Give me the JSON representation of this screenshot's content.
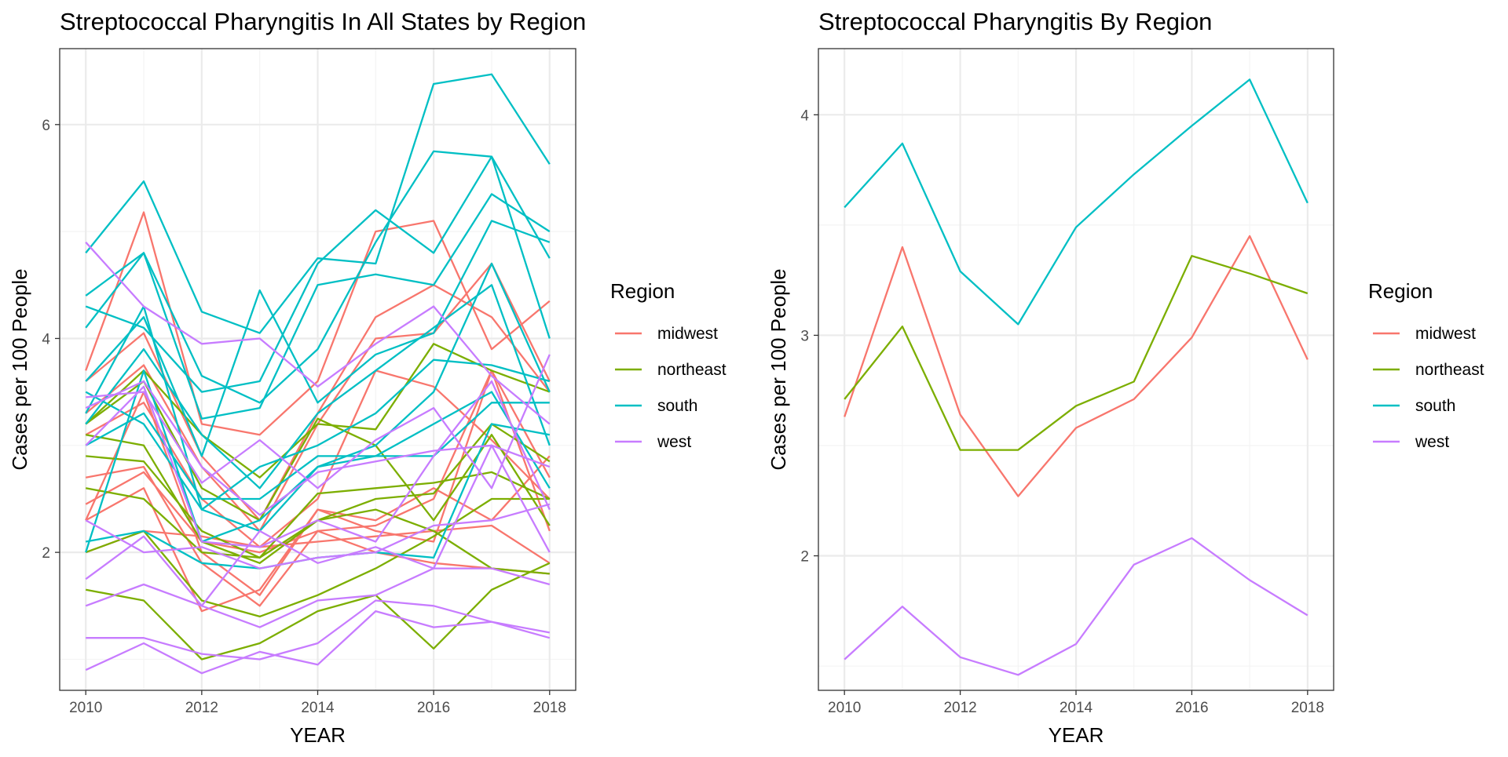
{
  "colors": {
    "midwest": "#F8766D",
    "northeast": "#7CAE00",
    "south": "#00BFC4",
    "west": "#C77CFF",
    "grid_major": "#EBEBEB",
    "grid_minor": "#F4F4F4",
    "panel_border": "#333333",
    "axis_text": "#4D4D4D"
  },
  "legend": {
    "title": "Region",
    "entries": [
      "midwest",
      "northeast",
      "south",
      "west"
    ]
  },
  "chart_data": [
    {
      "type": "line",
      "title": "Streptococcal Pharyngitis In All States by Region",
      "xlabel": "YEAR",
      "ylabel": "Cases per 100 People",
      "x": [
        2010,
        2011,
        2012,
        2013,
        2014,
        2015,
        2016,
        2017,
        2018
      ],
      "x_ticks": [
        "2010",
        "2012",
        "2014",
        "2016",
        "2018"
      ],
      "y_ticks": [
        "2",
        "4",
        "6"
      ],
      "xlim": [
        2009.55,
        2018.45
      ],
      "ylim": [
        0.71,
        6.71
      ],
      "grid": true,
      "legend_position": "right",
      "series": [
        {
          "region": "midwest",
          "values": [
            3.7,
            5.18,
            3.2,
            3.1,
            3.6,
            5.0,
            5.1,
            3.9,
            4.35
          ]
        },
        {
          "region": "midwest",
          "values": [
            3.6,
            4.05,
            2.9,
            2.3,
            3.3,
            4.2,
            4.5,
            4.2,
            3.5
          ]
        },
        {
          "region": "midwest",
          "values": [
            3.3,
            3.75,
            2.8,
            2.2,
            3.2,
            4.0,
            4.05,
            4.7,
            3.6
          ]
        },
        {
          "region": "midwest",
          "values": [
            2.3,
            3.5,
            2.0,
            1.6,
            2.4,
            2.3,
            2.6,
            2.3,
            2.9
          ]
        },
        {
          "region": "midwest",
          "values": [
            2.7,
            2.8,
            1.9,
            1.5,
            2.2,
            2.25,
            2.5,
            3.7,
            2.7
          ]
        },
        {
          "region": "midwest",
          "values": [
            2.3,
            2.6,
            1.45,
            1.65,
            2.4,
            2.2,
            2.1,
            3.7,
            2.2
          ]
        },
        {
          "region": "midwest",
          "values": [
            2.45,
            2.75,
            2.1,
            2.0,
            2.2,
            2.0,
            1.9,
            1.85,
            1.8
          ]
        },
        {
          "region": "midwest",
          "values": [
            2.0,
            2.2,
            2.15,
            2.05,
            2.1,
            2.15,
            2.2,
            2.25,
            1.9
          ]
        },
        {
          "region": "midwest",
          "values": [
            3.1,
            3.4,
            2.5,
            2.05,
            2.5,
            3.7,
            3.55,
            3.05,
            2.5
          ]
        },
        {
          "region": "northeast",
          "values": [
            3.2,
            3.7,
            3.1,
            2.7,
            3.2,
            3.15,
            3.95,
            3.7,
            3.5
          ]
        },
        {
          "region": "northeast",
          "values": [
            2.9,
            2.85,
            2.2,
            1.95,
            2.55,
            2.6,
            2.65,
            2.75,
            2.5
          ]
        },
        {
          "region": "northeast",
          "values": [
            2.6,
            2.5,
            2.0,
            1.95,
            2.3,
            2.5,
            2.55,
            3.2,
            2.85
          ]
        },
        {
          "region": "northeast",
          "values": [
            2.0,
            2.2,
            1.55,
            1.4,
            1.6,
            1.85,
            2.15,
            2.5,
            2.5
          ]
        },
        {
          "region": "northeast",
          "values": [
            1.65,
            1.55,
            1.0,
            1.15,
            1.45,
            1.6,
            1.1,
            1.65,
            1.9
          ]
        },
        {
          "region": "northeast",
          "values": [
            3.1,
            3.0,
            2.1,
            1.9,
            2.3,
            2.4,
            2.2,
            1.85,
            1.8
          ]
        },
        {
          "region": "northeast",
          "values": [
            3.2,
            3.6,
            2.6,
            2.3,
            3.25,
            3.0,
            2.3,
            3.1,
            2.25
          ]
        },
        {
          "region": "south",
          "values": [
            4.8,
            5.47,
            4.25,
            4.05,
            4.75,
            4.7,
            6.38,
            6.47,
            5.63
          ]
        },
        {
          "region": "south",
          "values": [
            4.4,
            4.8,
            3.65,
            3.4,
            3.9,
            4.9,
            5.75,
            5.7,
            4.75
          ]
        },
        {
          "region": "south",
          "values": [
            4.3,
            4.1,
            3.5,
            3.6,
            4.7,
            5.2,
            4.8,
            5.7,
            4.0
          ]
        },
        {
          "region": "south",
          "values": [
            4.1,
            4.8,
            3.25,
            3.35,
            4.5,
            4.6,
            4.5,
            5.35,
            5.0
          ]
        },
        {
          "region": "south",
          "values": [
            3.6,
            4.2,
            2.9,
            4.45,
            3.4,
            3.85,
            4.05,
            5.1,
            4.9
          ]
        },
        {
          "region": "south",
          "values": [
            3.2,
            3.9,
            3.1,
            2.6,
            3.3,
            3.7,
            4.1,
            4.5,
            3.0
          ]
        },
        {
          "region": "south",
          "values": [
            3.5,
            3.2,
            2.4,
            2.8,
            3.0,
            3.3,
            3.8,
            3.75,
            3.6
          ]
        },
        {
          "region": "south",
          "values": [
            2.0,
            3.7,
            2.1,
            2.3,
            2.8,
            3.0,
            3.5,
            4.7,
            3.5
          ]
        },
        {
          "region": "south",
          "values": [
            3.0,
            3.3,
            2.5,
            2.5,
            2.9,
            2.9,
            3.2,
            3.5,
            2.6
          ]
        },
        {
          "region": "south",
          "values": [
            3.3,
            4.3,
            2.4,
            2.2,
            2.8,
            2.9,
            2.9,
            3.4,
            3.4
          ]
        },
        {
          "region": "south",
          "values": [
            2.1,
            2.2,
            1.9,
            1.85,
            1.95,
            2.0,
            1.95,
            3.2,
            3.1
          ]
        },
        {
          "region": "west",
          "values": [
            4.9,
            4.3,
            3.95,
            4.0,
            3.55,
            3.95,
            4.3,
            3.65,
            3.2
          ]
        },
        {
          "region": "west",
          "values": [
            3.45,
            3.5,
            2.65,
            3.05,
            2.6,
            3.05,
            3.35,
            2.6,
            3.85
          ]
        },
        {
          "region": "west",
          "values": [
            3.35,
            3.6,
            2.8,
            2.35,
            2.75,
            2.85,
            2.95,
            3.0,
            2.8
          ]
        },
        {
          "region": "west",
          "values": [
            3.0,
            3.55,
            2.1,
            2.05,
            2.3,
            2.1,
            2.9,
            3.6,
            2.4
          ]
        },
        {
          "region": "west",
          "values": [
            1.75,
            2.15,
            1.5,
            2.2,
            1.9,
            2.05,
            1.85,
            3.0,
            2.0
          ]
        },
        {
          "region": "west",
          "values": [
            1.5,
            1.7,
            1.5,
            1.3,
            1.55,
            1.6,
            1.85,
            1.85,
            1.7
          ]
        },
        {
          "region": "west",
          "values": [
            1.2,
            1.2,
            1.05,
            1.0,
            1.15,
            1.55,
            1.5,
            1.35,
            1.25
          ]
        },
        {
          "region": "west",
          "values": [
            0.9,
            1.15,
            0.87,
            1.07,
            0.95,
            1.45,
            1.3,
            1.35,
            1.2
          ]
        },
        {
          "region": "west",
          "values": [
            2.3,
            2.0,
            2.05,
            1.85,
            1.95,
            2.0,
            2.25,
            2.3,
            2.45
          ]
        }
      ]
    },
    {
      "type": "line",
      "title": "Streptococcal Pharyngitis By Region",
      "xlabel": "YEAR",
      "ylabel": "Cases per 100 People",
      "x": [
        2010,
        2011,
        2012,
        2013,
        2014,
        2015,
        2016,
        2017,
        2018
      ],
      "x_ticks": [
        "2010",
        "2012",
        "2014",
        "2016",
        "2018"
      ],
      "y_ticks": [
        "2",
        "3",
        "4"
      ],
      "xlim": [
        2009.55,
        2018.45
      ],
      "ylim": [
        1.39,
        4.3
      ],
      "grid": true,
      "legend_position": "right",
      "series": [
        {
          "region": "midwest",
          "values": [
            2.63,
            3.4,
            2.64,
            2.27,
            2.58,
            2.71,
            2.99,
            3.45,
            2.89
          ]
        },
        {
          "region": "northeast",
          "values": [
            2.71,
            3.04,
            2.48,
            2.48,
            2.68,
            2.79,
            3.36,
            3.28,
            3.19
          ]
        },
        {
          "region": "south",
          "values": [
            3.58,
            3.87,
            3.29,
            3.05,
            3.49,
            3.73,
            3.95,
            4.16,
            3.6
          ]
        },
        {
          "region": "west",
          "values": [
            1.53,
            1.77,
            1.54,
            1.46,
            1.6,
            1.96,
            2.08,
            1.89,
            1.73
          ]
        }
      ]
    }
  ]
}
